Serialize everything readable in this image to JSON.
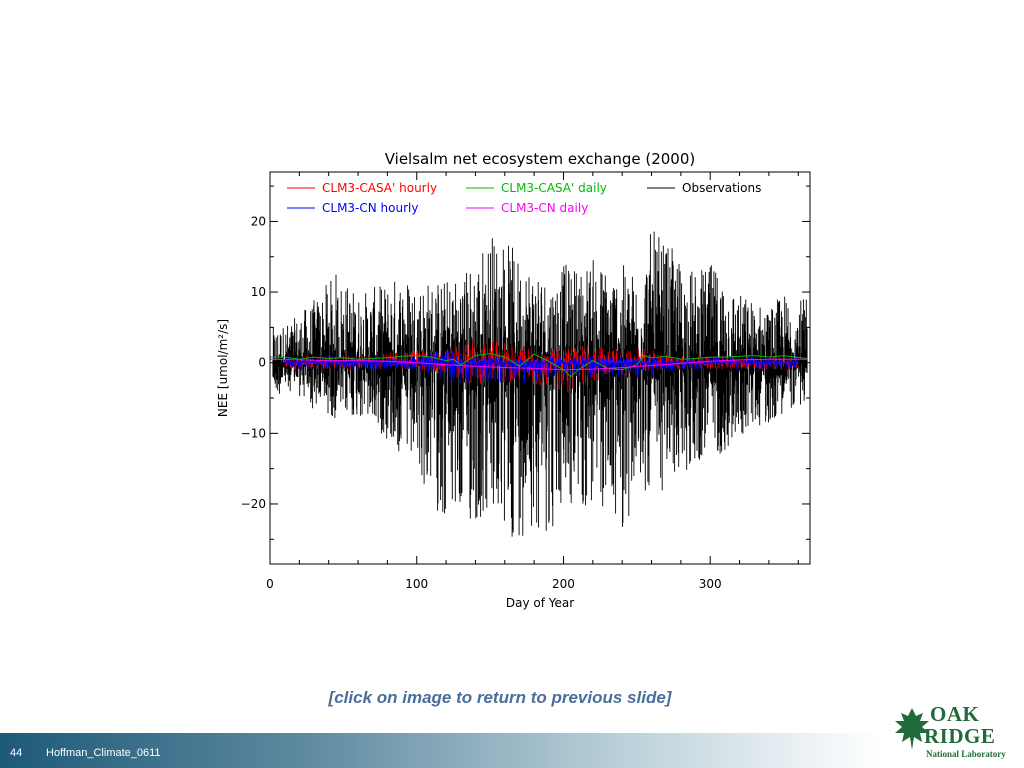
{
  "slide": {
    "number": "44",
    "footer_text": "Hoffman_Climate_0611",
    "link_text": "[click on image to return to previous slide]"
  },
  "logo": {
    "line1": "OAK",
    "line2": "RIDGE",
    "line3": "National Laboratory",
    "icon": "oak-leaf-icon",
    "color": "#1f6b3a"
  },
  "chart_data": {
    "type": "line",
    "title": "Vielsalm net ecosystem exchange (2000)",
    "xlabel": "Day of Year",
    "ylabel": "NEE [umol/m²/s]",
    "xlim": [
      0,
      368
    ],
    "ylim": [
      -28.5,
      27
    ],
    "xticks": [
      0,
      100,
      200,
      300
    ],
    "yticks": [
      -20,
      -10,
      0,
      10,
      20
    ],
    "grid": false,
    "legend_position": "top",
    "series": [
      {
        "name": "Observations",
        "color": "#000000",
        "style": "hourly",
        "x": [
          2,
          15,
          30,
          45,
          60,
          75,
          90,
          100,
          110,
          120,
          130,
          140,
          150,
          160,
          170,
          180,
          190,
          200,
          210,
          220,
          230,
          240,
          250,
          260,
          270,
          280,
          290,
          300,
          310,
          320,
          330,
          340,
          350,
          366
        ],
        "y_low": [
          -5,
          -4,
          -7,
          -8,
          -8,
          -10,
          -14,
          -17,
          -19,
          -24,
          -23,
          -24,
          -23,
          -26,
          -25,
          -23,
          -25,
          -22,
          -21,
          -22,
          -21,
          -24,
          -20,
          -18,
          -19,
          -16,
          -15,
          -13,
          -13,
          -11,
          -9,
          -9,
          -7,
          -6
        ],
        "y_high": [
          5,
          6,
          9,
          13,
          10,
          11,
          13,
          12,
          12,
          12,
          13,
          15,
          19,
          18,
          15,
          15,
          12,
          14,
          14,
          15,
          14,
          14,
          13,
          19,
          17,
          15,
          13,
          14,
          13,
          10,
          9,
          8,
          10,
          9
        ]
      },
      {
        "name": "CLM3-CASA' hourly",
        "color": "#ff0000",
        "style": "hourly",
        "x": [
          10,
          60,
          100,
          120,
          140,
          160,
          180,
          200,
          220,
          240,
          260,
          280,
          300,
          325,
          360
        ],
        "y_low": [
          -1,
          -1,
          -1,
          -2,
          -3,
          -3,
          -3,
          -5,
          -3,
          -2,
          -1,
          -1,
          -1,
          -1,
          -1
        ],
        "y_high": [
          1,
          1,
          2,
          2,
          3,
          3,
          2,
          2,
          3,
          2,
          2,
          1,
          1,
          1,
          1
        ]
      },
      {
        "name": "CLM3-CN hourly",
        "color": "#0000ff",
        "style": "hourly",
        "x": [
          10,
          60,
          100,
          120,
          140,
          160,
          180,
          200,
          220,
          240,
          260,
          280,
          300,
          325,
          360
        ],
        "y_low": [
          -1,
          -1,
          -1,
          -3,
          -3,
          -3,
          -3,
          -2,
          -3,
          -2,
          -2,
          -1,
          -1,
          -1,
          -1
        ],
        "y_high": [
          1,
          1,
          1,
          2,
          1,
          1,
          1,
          1,
          1,
          1,
          1,
          1,
          1,
          1,
          1
        ]
      },
      {
        "name": "CLM3-CASA' daily",
        "color": "#00bb00",
        "style": "daily",
        "x": [
          0,
          10,
          20,
          30,
          40,
          50,
          60,
          70,
          80,
          90,
          100,
          110,
          120,
          125,
          130,
          140,
          150,
          160,
          170,
          180,
          190,
          200,
          205,
          210,
          220,
          230,
          240,
          250,
          255,
          260,
          270,
          280,
          290,
          300,
          310,
          320,
          330,
          340,
          350,
          366
        ],
        "y": [
          0.8,
          0.8,
          0.5,
          0.8,
          0.6,
          0.7,
          0.5,
          0.6,
          0.7,
          0.9,
          1.0,
          0.8,
          0.3,
          0.5,
          -0.3,
          1.0,
          1.3,
          0.8,
          -0.5,
          1.2,
          0.2,
          -1.0,
          -2.0,
          -1.0,
          0.3,
          -0.8,
          -1.0,
          -0.3,
          1.0,
          0.7,
          0.9,
          0.5,
          0.6,
          0.8,
          0.8,
          0.9,
          1.0,
          0.8,
          1.0,
          0.6
        ]
      },
      {
        "name": "CLM3-CN daily",
        "color": "#ff00ff",
        "style": "daily",
        "x": [
          0,
          20,
          40,
          60,
          80,
          100,
          120,
          140,
          160,
          180,
          200,
          220,
          240,
          260,
          280,
          300,
          320,
          340,
          366
        ],
        "y": [
          0.5,
          0.4,
          0.3,
          0.3,
          0.2,
          0.0,
          -0.3,
          -0.5,
          -0.7,
          -0.8,
          -1.0,
          -0.9,
          -0.7,
          -0.4,
          -0.1,
          0.2,
          0.4,
          0.5,
          0.5
        ]
      }
    ]
  }
}
